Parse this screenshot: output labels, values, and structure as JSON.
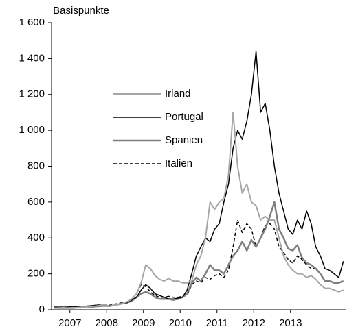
{
  "chart_data": {
    "type": "line",
    "y_label": "Basispunkte",
    "categories": [
      null,
      null,
      null,
      null,
      "2007",
      null,
      null,
      null,
      null,
      null,
      null,
      null,
      "2008",
      null,
      null,
      null,
      null,
      null,
      null,
      null,
      "2009",
      null,
      null,
      null,
      null,
      null,
      null,
      null,
      "2010",
      null,
      null,
      null,
      null,
      null,
      null,
      null,
      "2011",
      null,
      null,
      null,
      null,
      null,
      null,
      null,
      "2012",
      null,
      null,
      null,
      null,
      null,
      null,
      null,
      "2013",
      null,
      null,
      null,
      null,
      null,
      null,
      null,
      null,
      null,
      null,
      null
    ],
    "series": [
      {
        "name": "Irland",
        "color": "#a6a6a6",
        "width": 2,
        "dash": false,
        "values": [
          10,
          10,
          12,
          10,
          12,
          12,
          15,
          15,
          18,
          20,
          25,
          30,
          20,
          25,
          30,
          35,
          45,
          60,
          90,
          150,
          250,
          230,
          190,
          170,
          160,
          175,
          160,
          160,
          150,
          150,
          160,
          250,
          300,
          400,
          600,
          560,
          600,
          620,
          750,
          1100,
          800,
          650,
          700,
          600,
          580,
          500,
          520,
          500,
          500,
          400,
          300,
          250,
          220,
          200,
          200,
          180,
          190,
          170,
          140,
          120,
          120,
          110,
          100,
          110
        ]
      },
      {
        "name": "Portugal",
        "color": "#000000",
        "width": 1.5,
        "dash": false,
        "values": [
          15,
          15,
          15,
          15,
          18,
          18,
          20,
          20,
          22,
          25,
          28,
          30,
          20,
          25,
          30,
          35,
          40,
          55,
          70,
          110,
          140,
          120,
          90,
          80,
          70,
          60,
          60,
          65,
          70,
          110,
          200,
          300,
          350,
          400,
          380,
          450,
          480,
          600,
          700,
          900,
          1000,
          950,
          1050,
          1200,
          1440,
          1100,
          1150,
          1000,
          800,
          650,
          550,
          450,
          420,
          500,
          450,
          550,
          480,
          350,
          300,
          230,
          220,
          200,
          180,
          270
        ]
      },
      {
        "name": "Spanien",
        "color": "#7f7f7f",
        "width": 2.5,
        "dash": false,
        "values": [
          10,
          10,
          10,
          10,
          10,
          12,
          12,
          15,
          15,
          18,
          20,
          22,
          20,
          25,
          30,
          35,
          40,
          50,
          70,
          90,
          100,
          90,
          70,
          60,
          60,
          60,
          55,
          60,
          70,
          90,
          150,
          180,
          160,
          200,
          250,
          220,
          220,
          200,
          250,
          300,
          330,
          380,
          330,
          390,
          350,
          400,
          450,
          520,
          600,
          450,
          400,
          340,
          330,
          360,
          290,
          260,
          250,
          230,
          200,
          160,
          160,
          150,
          150,
          160
        ]
      },
      {
        "name": "Italien",
        "color": "#000000",
        "width": 1.5,
        "dash": true,
        "values": [
          15,
          15,
          15,
          15,
          18,
          18,
          20,
          20,
          22,
          25,
          28,
          30,
          25,
          30,
          35,
          40,
          45,
          60,
          90,
          140,
          130,
          100,
          80,
          70,
          70,
          75,
          70,
          70,
          75,
          80,
          140,
          160,
          150,
          180,
          170,
          190,
          200,
          180,
          220,
          350,
          500,
          430,
          480,
          450,
          350,
          400,
          470,
          480,
          450,
          350,
          320,
          280,
          260,
          300,
          280,
          250,
          230,
          230,
          200,
          160,
          160,
          150,
          150,
          160
        ]
      }
    ],
    "ylim": [
      0,
      1600
    ],
    "yticks": [
      0,
      200,
      400,
      600,
      800,
      {
        "value": 1000,
        "label": "1 000"
      },
      {
        "value": 1200,
        "label": "1 200"
      },
      {
        "value": 1400,
        "label": "1 400"
      },
      {
        "value": 1600,
        "label": "1 600"
      }
    ],
    "grid": false,
    "legend": "center left"
  }
}
